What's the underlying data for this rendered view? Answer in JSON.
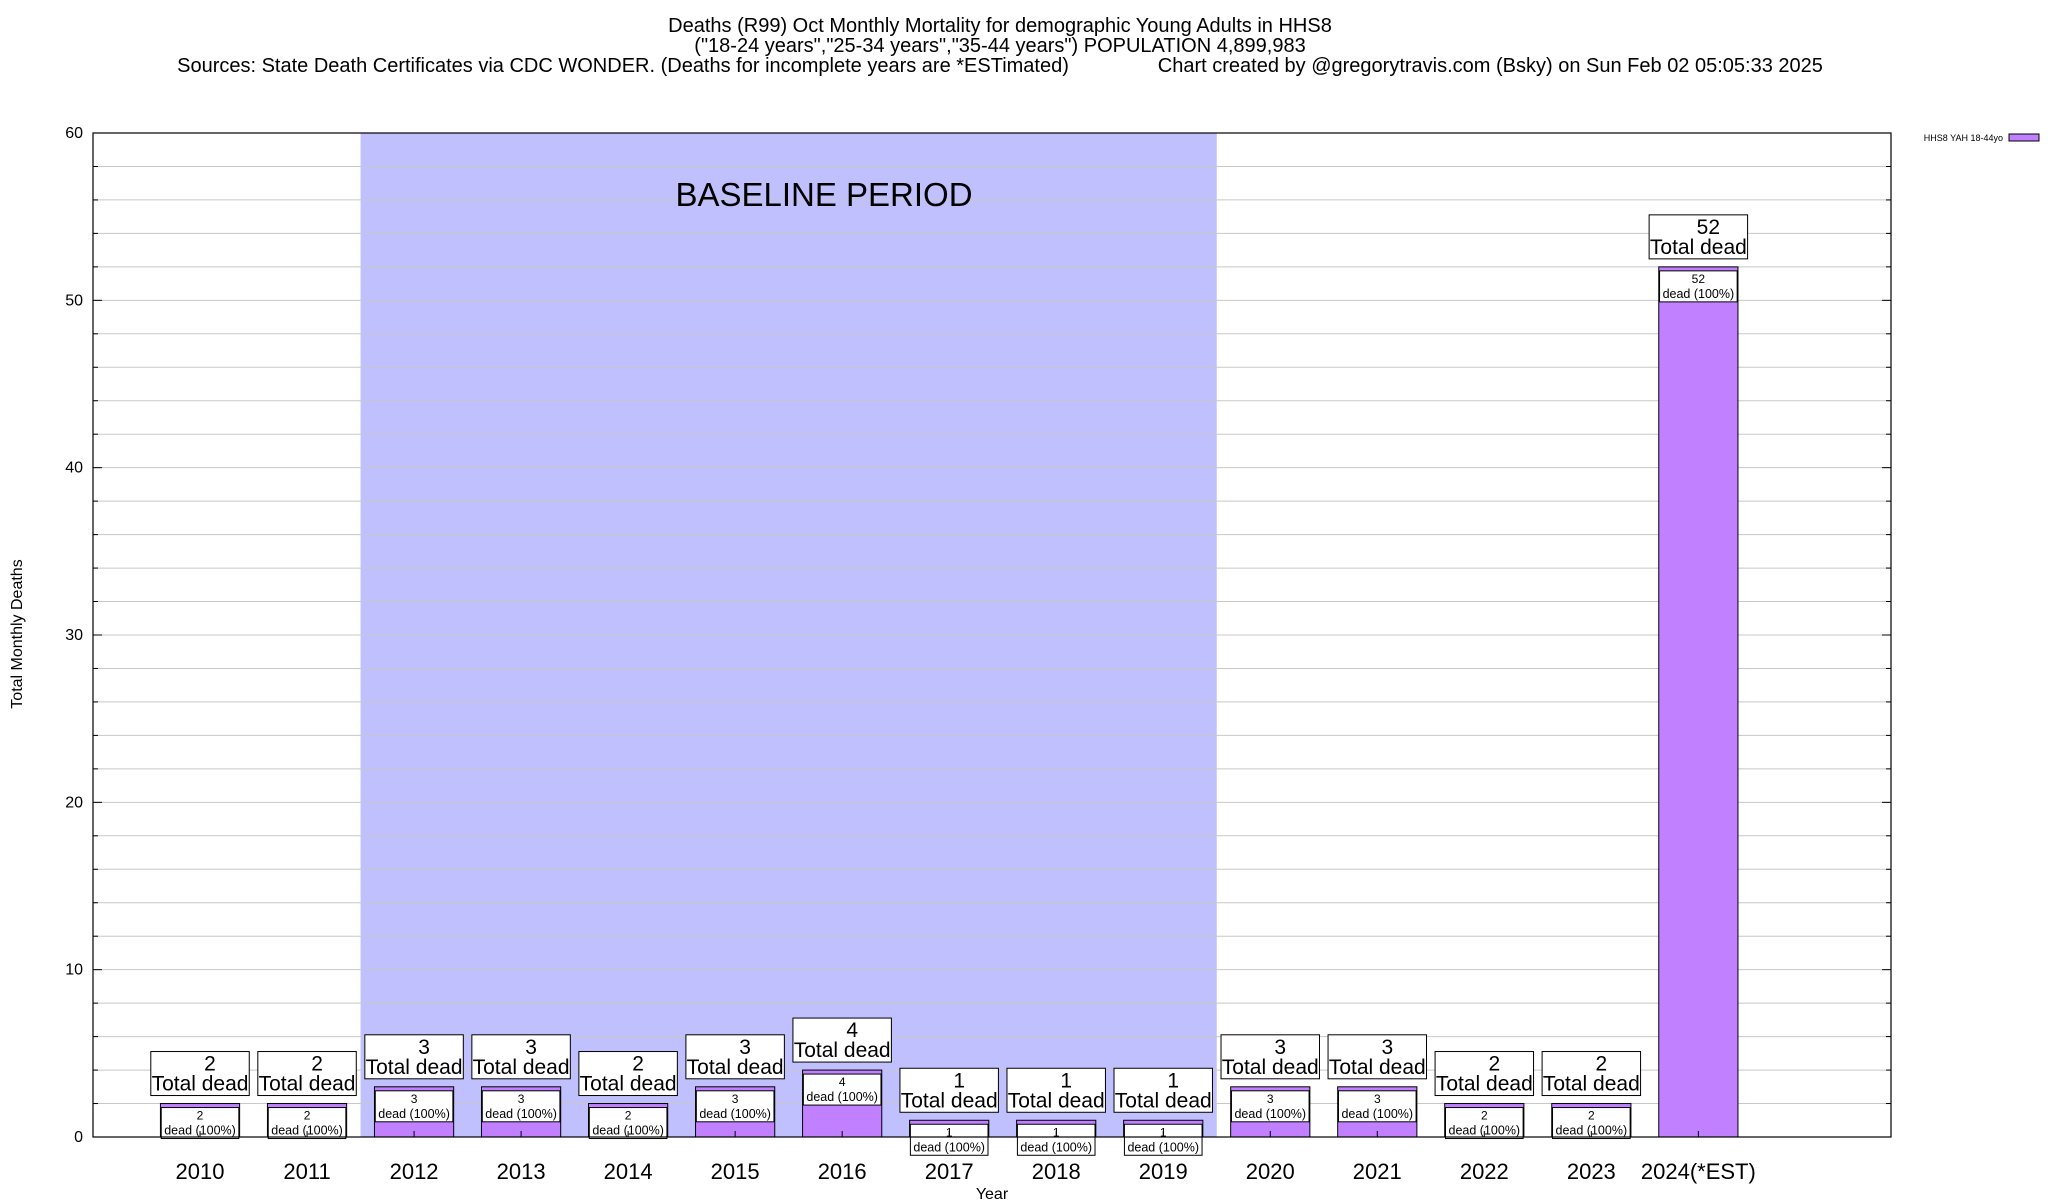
{
  "title_lines": [
    "Deaths (R99) Oct Monthly Mortality for demographic Young Adults in HHS8",
    "(\"18-24 years\",\"25-34 years\",\"35-44 years\") POPULATION 4,899,983",
    "Sources: State Death Certificates via CDC WONDER. (Deaths for incomplete years are *ESTimated)                Chart created by @gregorytravis.com (Bsky) on Sun Feb 02 05:05:33 2025"
  ],
  "colors": {
    "bar": "#c080ff",
    "baseline_band": "#c0c0ff",
    "grid": "#c8c8c8",
    "axis": "#000000"
  },
  "annotations": {
    "baseline_label": "BASELINE PERIOD",
    "total_word": "Total dead",
    "inner_word": "dead (100%)"
  },
  "chart_data": {
    "type": "bar",
    "xlabel": "Year",
    "ylabel": "Total Monthly Deaths",
    "ylim": [
      0,
      60
    ],
    "yticks": [
      0,
      10,
      20,
      30,
      40,
      50,
      60
    ],
    "y_minor_step": 2,
    "grid": true,
    "legend_position": "top-right",
    "categories": [
      "2010",
      "2011",
      "2012",
      "2013",
      "2014",
      "2015",
      "2016",
      "2017",
      "2018",
      "2019",
      "2020",
      "2021",
      "2022",
      "2023",
      "2024(*EST)"
    ],
    "series": [
      {
        "name": "HHS8 YAH 18-44yo",
        "values": [
          2,
          2,
          3,
          3,
          2,
          3,
          4,
          1,
          1,
          1,
          3,
          3,
          2,
          2,
          52
        ]
      }
    ],
    "baseline_period": {
      "from": "2012",
      "to": "2019"
    }
  }
}
